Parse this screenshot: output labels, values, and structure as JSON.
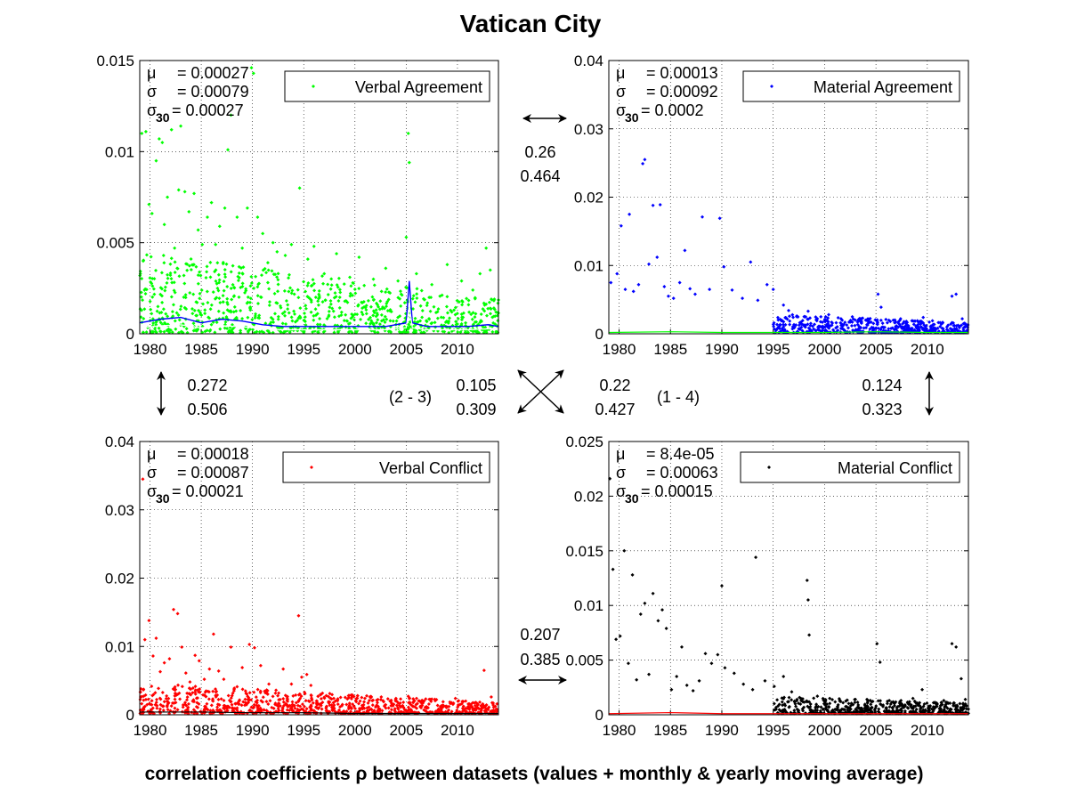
{
  "title": "Vatican City",
  "caption": "correlation coefficients ρ between datasets (values + monthly & yearly moving average)",
  "colors": {
    "green": "#00ff00",
    "blue": "#0000ff",
    "red": "#ff0000",
    "black": "#000000",
    "white": "#ffffff"
  },
  "correlations": {
    "top": {
      "a": "0.26",
      "b": "0.464"
    },
    "bottom": {
      "a": "0.207",
      "b": "0.385"
    },
    "left": {
      "a": "0.272",
      "b": "0.506"
    },
    "right": {
      "a": "0.124",
      "b": "0.323"
    },
    "diag_left": {
      "a": "0.105",
      "b": "0.309",
      "label": "(2 - 3)"
    },
    "diag_right": {
      "a": "0.22",
      "b": "0.427",
      "label": "(1 - 4)"
    }
  },
  "chart_data": [
    {
      "type": "scatter",
      "name": "Verbal Agreement",
      "legend": "Verbal Agreement",
      "legend_location": "top-right",
      "color": "#00ff00",
      "grid": true,
      "xlim": [
        1979,
        2014
      ],
      "ylim": [
        0,
        0.015
      ],
      "yticks": [
        0,
        0.005,
        0.01,
        0.015
      ],
      "ytick_labels": [
        "0",
        "0.005",
        "0.01",
        "0.015"
      ],
      "xticks": [
        1980,
        1985,
        1990,
        1995,
        2000,
        2005,
        2010
      ],
      "stats": {
        "mu": "= 0.00027",
        "sigma": "= 0.00079",
        "sigma30": "= 0.00027"
      },
      "points": [
        [
          1979.2,
          0.011
        ],
        [
          1979.6,
          0.0111
        ],
        [
          1979.9,
          0.0071
        ],
        [
          1980.2,
          0.0066
        ],
        [
          1980.6,
          0.0095
        ],
        [
          1980.9,
          0.0107
        ],
        [
          1981.2,
          0.0105
        ],
        [
          1981.4,
          0.006
        ],
        [
          1981.7,
          0.0075
        ],
        [
          1982.1,
          0.0112
        ],
        [
          1982.4,
          0.0047
        ],
        [
          1982.8,
          0.0079
        ],
        [
          1983.0,
          0.0114
        ],
        [
          1983.4,
          0.0078
        ],
        [
          1983.8,
          0.0067
        ],
        [
          1984.3,
          0.0077
        ],
        [
          1984.7,
          0.0057
        ],
        [
          1985.1,
          0.0049
        ],
        [
          1985.6,
          0.0064
        ],
        [
          1986.0,
          0.0072
        ],
        [
          1986.4,
          0.0049
        ],
        [
          1986.8,
          0.0059
        ],
        [
          1987.3,
          0.0069
        ],
        [
          1987.6,
          0.0101
        ],
        [
          1987.9,
          0.012
        ],
        [
          1988.5,
          0.0064
        ],
        [
          1989.0,
          0.0047
        ],
        [
          1989.5,
          0.0069
        ],
        [
          1989.9,
          0.0146
        ],
        [
          1990.1,
          0.0143
        ],
        [
          1990.5,
          0.0064
        ],
        [
          1991.0,
          0.0055
        ],
        [
          1991.5,
          0.0039
        ],
        [
          1992.0,
          0.005
        ],
        [
          1992.4,
          0.0045
        ],
        [
          1993.2,
          0.0043
        ],
        [
          1993.8,
          0.0049
        ],
        [
          1994.6,
          0.008
        ],
        [
          1995.4,
          0.0041
        ],
        [
          1996.0,
          0.0048
        ],
        [
          1997.0,
          0.0033
        ],
        [
          1998.2,
          0.0044
        ],
        [
          1999.5,
          0.0031
        ],
        [
          2000.4,
          0.0042
        ],
        [
          2001.8,
          0.003
        ],
        [
          2003.0,
          0.0036
        ],
        [
          2004.2,
          0.0029
        ],
        [
          2005.0,
          0.0053
        ],
        [
          2005.2,
          0.011
        ],
        [
          2005.3,
          0.0094
        ],
        [
          2006.0,
          0.0033
        ],
        [
          2007.5,
          0.0027
        ],
        [
          2009.0,
          0.0038
        ],
        [
          2010.4,
          0.0029
        ],
        [
          2011.5,
          0.0024
        ],
        [
          2012.2,
          0.0033
        ],
        [
          2012.8,
          0.0047
        ],
        [
          2013.2,
          0.0035
        ],
        [
          2013.6,
          0.0019
        ]
      ],
      "noise": {
        "x_range": [
          1979,
          2014
        ],
        "y_decay": [
          0.0045,
          0.0018
        ]
      },
      "moving_average": [
        [
          1979,
          0.0006
        ],
        [
          1981,
          0.0008
        ],
        [
          1983,
          0.0009
        ],
        [
          1985,
          0.0006
        ],
        [
          1987,
          0.0008
        ],
        [
          1989,
          0.0007
        ],
        [
          1991,
          0.0005
        ],
        [
          1993,
          0.0004
        ],
        [
          1995,
          0.0004
        ],
        [
          1997,
          0.0004
        ],
        [
          1999,
          0.0004
        ],
        [
          2001,
          0.0004
        ],
        [
          2003,
          0.0004
        ],
        [
          2005,
          0.0006
        ],
        [
          2005.3,
          0.0029
        ],
        [
          2005.6,
          0.0006
        ],
        [
          2007,
          0.0004
        ],
        [
          2009,
          0.0004
        ],
        [
          2011,
          0.0004
        ],
        [
          2013,
          0.0005
        ],
        [
          2014,
          0.0004
        ]
      ]
    },
    {
      "type": "scatter",
      "name": "Material Agreement",
      "legend": "Material Agreement",
      "legend_location": "top-right",
      "color": "#0000ff",
      "grid": true,
      "xlim": [
        1979,
        2014
      ],
      "ylim": [
        0,
        0.04
      ],
      "yticks": [
        0,
        0.01,
        0.02,
        0.03,
        0.04
      ],
      "ytick_labels": [
        "0",
        "0.01",
        "0.02",
        "0.03",
        "0.04"
      ],
      "xticks": [
        1980,
        1985,
        1990,
        1995,
        2000,
        2005,
        2010
      ],
      "stats": {
        "mu": "= 0.00013",
        "sigma": "= 0.00092",
        "sigma30": "= 0.0002"
      },
      "points": [
        [
          1979.2,
          0.0075
        ],
        [
          1979.8,
          0.0088
        ],
        [
          1980.2,
          0.0158
        ],
        [
          1980.6,
          0.0065
        ],
        [
          1981.0,
          0.0175
        ],
        [
          1981.4,
          0.0062
        ],
        [
          1981.9,
          0.0072
        ],
        [
          1982.3,
          0.0249
        ],
        [
          1982.5,
          0.0255
        ],
        [
          1982.9,
          0.0102
        ],
        [
          1983.3,
          0.0188
        ],
        [
          1983.7,
          0.0112
        ],
        [
          1984.0,
          0.0189
        ],
        [
          1984.4,
          0.0069
        ],
        [
          1984.8,
          0.0055
        ],
        [
          1985.3,
          0.0052
        ],
        [
          1985.9,
          0.0075
        ],
        [
          1986.4,
          0.0122
        ],
        [
          1986.9,
          0.0066
        ],
        [
          1987.4,
          0.0058
        ],
        [
          1988.1,
          0.0171
        ],
        [
          1988.8,
          0.0065
        ],
        [
          1989.8,
          0.0169
        ],
        [
          1990.2,
          0.0098
        ],
        [
          1991.0,
          0.0064
        ],
        [
          1992.0,
          0.0052
        ],
        [
          1992.8,
          0.0105
        ],
        [
          1993.5,
          0.0049
        ],
        [
          1994.4,
          0.0072
        ],
        [
          1995.0,
          0.0065
        ],
        [
          1996.0,
          0.0042
        ],
        [
          1996.5,
          0.0034
        ],
        [
          1997.3,
          0.0026
        ],
        [
          1998.4,
          0.0033
        ],
        [
          1999.3,
          0.0022
        ],
        [
          2000.4,
          0.0028
        ],
        [
          2001.6,
          0.0022
        ],
        [
          2002.7,
          0.0025
        ],
        [
          2004.0,
          0.002
        ],
        [
          2005.2,
          0.0058
        ],
        [
          2005.5,
          0.0039
        ],
        [
          2006.4,
          0.0018
        ],
        [
          2007.4,
          0.0022
        ],
        [
          2008.5,
          0.0019
        ],
        [
          2009.6,
          0.0024
        ],
        [
          2010.5,
          0.0019
        ],
        [
          2011.5,
          0.0016
        ],
        [
          2012.4,
          0.0055
        ],
        [
          2012.8,
          0.0058
        ],
        [
          2013.4,
          0.0022
        ]
      ],
      "noise": {
        "x_range": [
          1995,
          2014
        ],
        "y_decay": [
          0.0028,
          0.0014
        ]
      },
      "moving_average": [
        [
          1979,
          0.0002
        ],
        [
          1985,
          0.0003
        ],
        [
          1990,
          0.0002
        ],
        [
          1995,
          0.0002
        ],
        [
          2000,
          0.0002
        ],
        [
          2005,
          0.0003
        ],
        [
          2010,
          0.0002
        ],
        [
          2014,
          0.0002
        ]
      ]
    },
    {
      "type": "scatter",
      "name": "Verbal Conflict",
      "legend": "Verbal Conflict",
      "legend_location": "top-right",
      "color": "#ff0000",
      "grid": true,
      "xlim": [
        1979,
        2014
      ],
      "ylim": [
        0,
        0.04
      ],
      "yticks": [
        0,
        0.01,
        0.02,
        0.03,
        0.04
      ],
      "ytick_labels": [
        "0",
        "0.01",
        "0.02",
        "0.03",
        "0.04"
      ],
      "xticks": [
        1980,
        1985,
        1990,
        1995,
        2000,
        2005,
        2010
      ],
      "stats": {
        "mu": "= 0.00018",
        "sigma": "= 0.00087",
        "sigma30": "= 0.00021"
      },
      "points": [
        [
          1979.3,
          0.0345
        ],
        [
          1979.5,
          0.011
        ],
        [
          1979.9,
          0.0138
        ],
        [
          1980.3,
          0.0086
        ],
        [
          1980.6,
          0.0112
        ],
        [
          1981.0,
          0.0063
        ],
        [
          1981.4,
          0.0076
        ],
        [
          1981.9,
          0.0082
        ],
        [
          1982.3,
          0.0154
        ],
        [
          1982.7,
          0.0148
        ],
        [
          1983.1,
          0.0099
        ],
        [
          1983.5,
          0.0061
        ],
        [
          1983.9,
          0.0048
        ],
        [
          1984.4,
          0.0087
        ],
        [
          1984.8,
          0.0079
        ],
        [
          1985.3,
          0.0052
        ],
        [
          1985.8,
          0.0067
        ],
        [
          1986.2,
          0.0118
        ],
        [
          1986.7,
          0.0064
        ],
        [
          1987.2,
          0.0052
        ],
        [
          1987.9,
          0.0099
        ],
        [
          1988.5,
          0.0041
        ],
        [
          1989.0,
          0.0069
        ],
        [
          1989.7,
          0.0103
        ],
        [
          1990.2,
          0.0098
        ],
        [
          1990.8,
          0.0072
        ],
        [
          1991.6,
          0.0045
        ],
        [
          1992.3,
          0.0036
        ],
        [
          1993.0,
          0.0067
        ],
        [
          1993.8,
          0.0045
        ],
        [
          1994.5,
          0.0145
        ],
        [
          1994.8,
          0.0055
        ],
        [
          1995.3,
          0.0059
        ],
        [
          1995.7,
          0.0043
        ],
        [
          1996.4,
          0.0027
        ],
        [
          1997.2,
          0.0028
        ],
        [
          1998.3,
          0.0022
        ],
        [
          1999.4,
          0.0025
        ],
        [
          2000.5,
          0.002
        ],
        [
          2001.6,
          0.0026
        ],
        [
          2002.8,
          0.0019
        ],
        [
          2004.0,
          0.0024
        ],
        [
          2005.2,
          0.0027
        ],
        [
          2006.3,
          0.002
        ],
        [
          2007.5,
          0.0023
        ],
        [
          2008.6,
          0.0019
        ],
        [
          2009.8,
          0.0024
        ],
        [
          2010.8,
          0.002
        ],
        [
          2011.8,
          0.0018
        ],
        [
          2012.6,
          0.0065
        ],
        [
          2013.3,
          0.0026
        ]
      ],
      "noise": {
        "x_range": [
          1979,
          2014
        ],
        "y_decay": [
          0.0045,
          0.0016
        ]
      },
      "moving_average": [
        [
          1979,
          0.0004
        ],
        [
          1985,
          0.0004
        ],
        [
          1990,
          0.0003
        ],
        [
          1995,
          0.0003
        ],
        [
          2000,
          0.0002
        ],
        [
          2005,
          0.0002
        ],
        [
          2010,
          0.0002
        ],
        [
          2014,
          0.0002
        ]
      ]
    },
    {
      "type": "scatter",
      "name": "Material Conflict",
      "legend": "Material Conflict",
      "legend_location": "top-right",
      "color": "#000000",
      "grid": true,
      "xlim": [
        1979,
        2014
      ],
      "ylim": [
        0,
        0.025
      ],
      "yticks": [
        0,
        0.005,
        0.01,
        0.015,
        0.02,
        0.025
      ],
      "ytick_labels": [
        "0",
        "0.005",
        "0.01",
        "0.015",
        "0.02",
        "0.025"
      ],
      "xticks": [
        1980,
        1985,
        1990,
        1995,
        2000,
        2005,
        2010
      ],
      "stats": {
        "mu": "= 8.4e-05",
        "sigma": "= 0.00063",
        "sigma30": "= 0.00015"
      },
      "points": [
        [
          1979.1,
          0.0216
        ],
        [
          1979.4,
          0.0133
        ],
        [
          1979.7,
          0.0069
        ],
        [
          1980.1,
          0.0072
        ],
        [
          1980.5,
          0.015
        ],
        [
          1980.9,
          0.0047
        ],
        [
          1981.3,
          0.0128
        ],
        [
          1981.7,
          0.0032
        ],
        [
          1982.1,
          0.0092
        ],
        [
          1982.5,
          0.0102
        ],
        [
          1982.9,
          0.0037
        ],
        [
          1983.3,
          0.0111
        ],
        [
          1983.8,
          0.0086
        ],
        [
          1984.2,
          0.0096
        ],
        [
          1984.6,
          0.0079
        ],
        [
          1985.1,
          0.0023
        ],
        [
          1985.6,
          0.0035
        ],
        [
          1986.1,
          0.0062
        ],
        [
          1986.6,
          0.0027
        ],
        [
          1987.2,
          0.0022
        ],
        [
          1987.8,
          0.0031
        ],
        [
          1988.4,
          0.0056
        ],
        [
          1989.0,
          0.0047
        ],
        [
          1989.6,
          0.0055
        ],
        [
          1990.0,
          0.0118
        ],
        [
          1990.3,
          0.0043
        ],
        [
          1991.2,
          0.0038
        ],
        [
          1992.1,
          0.0028
        ],
        [
          1993.0,
          0.0023
        ],
        [
          1993.3,
          0.0144
        ],
        [
          1994.2,
          0.0031
        ],
        [
          1995.1,
          0.0026
        ],
        [
          1996.0,
          0.0035
        ],
        [
          1996.8,
          0.0021
        ],
        [
          1997.7,
          0.0015
        ],
        [
          1998.3,
          0.0123
        ],
        [
          1998.4,
          0.0105
        ],
        [
          1998.5,
          0.0073
        ],
        [
          1999.3,
          0.0017
        ],
        [
          2000.5,
          0.0015
        ],
        [
          2001.8,
          0.0011
        ],
        [
          2003.0,
          0.0014
        ],
        [
          2004.2,
          0.0012
        ],
        [
          2005.1,
          0.0065
        ],
        [
          2005.4,
          0.0048
        ],
        [
          2006.3,
          0.0013
        ],
        [
          2007.5,
          0.001
        ],
        [
          2008.6,
          0.0015
        ],
        [
          2009.5,
          0.0023
        ],
        [
          2010.6,
          0.0011
        ],
        [
          2011.6,
          0.0013
        ],
        [
          2012.4,
          0.0065
        ],
        [
          2012.8,
          0.0062
        ],
        [
          2013.3,
          0.0033
        ],
        [
          2013.7,
          0.0014
        ]
      ],
      "noise": {
        "x_range": [
          1995,
          2014
        ],
        "y_decay": [
          0.0016,
          0.001
        ]
      },
      "moving_average": [
        [
          1979,
          0.0001
        ],
        [
          1985,
          0.0002
        ],
        [
          1990,
          0.0001
        ],
        [
          1995,
          0.0001
        ],
        [
          2000,
          0.0001
        ],
        [
          2005,
          0.0001
        ],
        [
          2010,
          0.0001
        ],
        [
          2014,
          0.0001
        ]
      ]
    }
  ]
}
